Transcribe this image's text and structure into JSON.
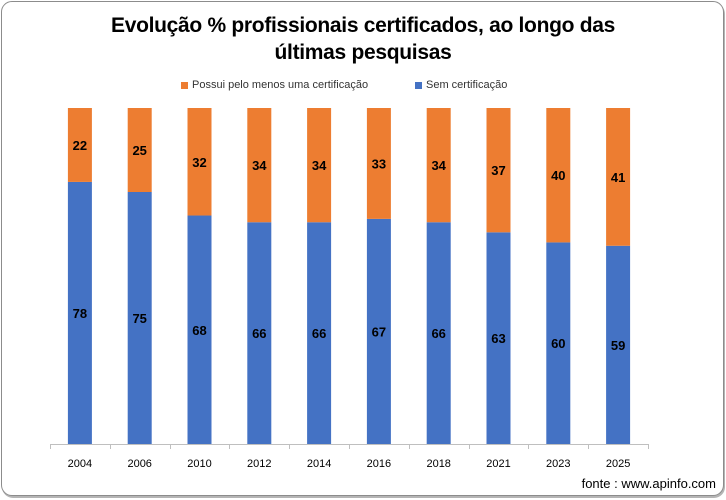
{
  "chart_data": {
    "type": "bar",
    "stacked": true,
    "title": "Evolução % profissionais certificados, ao longo das últimas pesquisas",
    "title_lines": [
      "Evolução % profissionais certificados, ao longo das",
      "últimas pesquisas"
    ],
    "xlabel": "",
    "ylabel": "",
    "ylim": [
      0,
      100
    ],
    "grid": false,
    "legend_position": "top",
    "categories": [
      "2004",
      "2006",
      "2010",
      "2012",
      "2014",
      "2016",
      "2018",
      "2021",
      "2023",
      "2025"
    ],
    "series": [
      {
        "name": "Sem certificação",
        "color": "#4472C4",
        "values": [
          78,
          75,
          68,
          66,
          66,
          67,
          66,
          63,
          60,
          59
        ]
      },
      {
        "name": "Possui pelo menos uma certificação",
        "color": "#ED7D31",
        "values": [
          22,
          25,
          32,
          34,
          34,
          33,
          34,
          37,
          40,
          41
        ]
      }
    ],
    "legend": [
      "Possui pelo menos uma certificação",
      "Sem certificação"
    ],
    "source": "fonte : www.apinfo.com"
  }
}
